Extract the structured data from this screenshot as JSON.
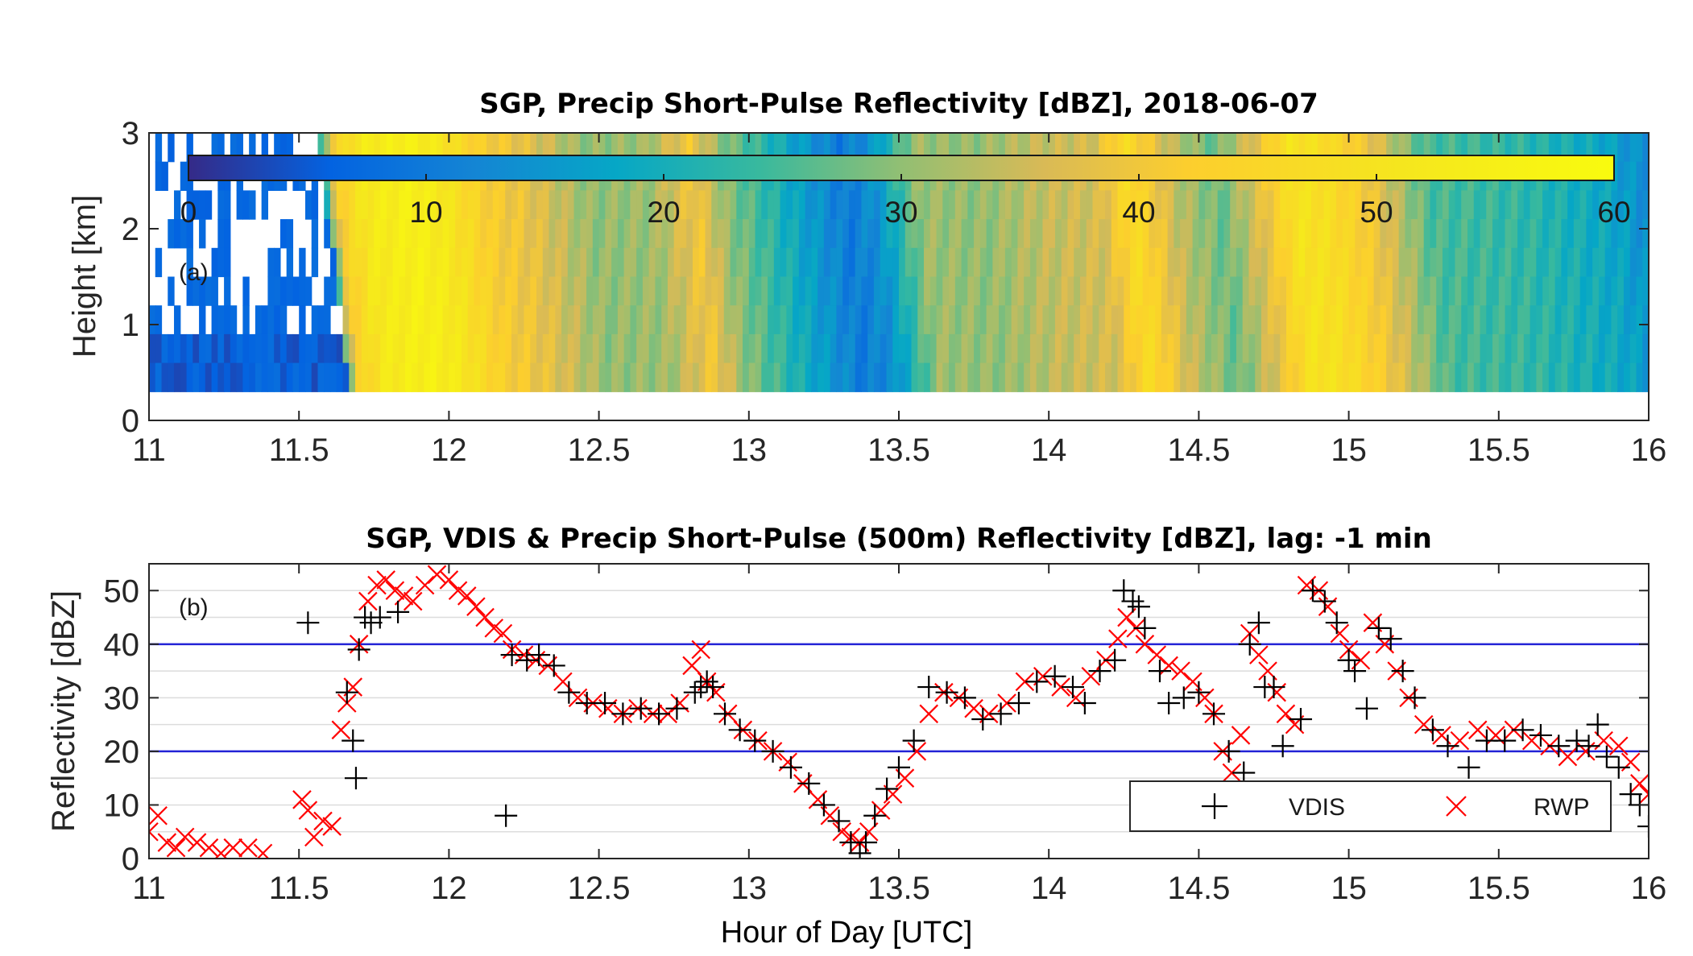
{
  "chart_data": [
    {
      "type": "heatmap",
      "panel_label": "(a)",
      "title": "SGP, Precip Short-Pulse Reflectivity [dBZ], 2018-06-07",
      "xlabel": "",
      "ylabel": "Height [km]",
      "xlim": [
        11,
        16
      ],
      "ylim": [
        0,
        3
      ],
      "xticks": [
        "11",
        "11.5",
        "12",
        "12.5",
        "13",
        "13.5",
        "14",
        "14.5",
        "15",
        "15.5",
        "16"
      ],
      "yticks": [
        "0",
        "1",
        "2",
        "3"
      ],
      "colorbar": {
        "range": [
          0,
          60
        ],
        "ticks": [
          "0",
          "10",
          "20",
          "30",
          "40",
          "50",
          "60"
        ],
        "colormap": "parula",
        "location": "inside-top"
      },
      "data_height_range_km": [
        0.3,
        3
      ],
      "hour_profile": {
        "hours": [
          11.0,
          11.3,
          11.6,
          11.66,
          11.75,
          11.9,
          12.0,
          12.15,
          12.3,
          12.5,
          12.7,
          12.85,
          12.95,
          13.2,
          13.35,
          13.45,
          13.6,
          13.8,
          14.0,
          14.2,
          14.3,
          14.45,
          14.6,
          14.75,
          14.85,
          14.95,
          15.1,
          15.3,
          15.6,
          15.9,
          16.0
        ],
        "reflectivity_dbz": [
          5,
          6,
          12,
          42,
          52,
          55,
          52,
          42,
          38,
          30,
          31,
          40,
          30,
          17,
          10,
          14,
          31,
          30,
          34,
          36,
          47,
          34,
          27,
          39,
          50,
          48,
          40,
          25,
          23,
          18,
          14
        ]
      }
    },
    {
      "type": "scatter",
      "panel_label": "(b)",
      "title": "SGP, VDIS & Precip Short-Pulse (500m) Reflectivity [dBZ], lag: -1 min",
      "xlabel": "Hour of Day [UTC]",
      "ylabel": "Reflectivity [dBZ]",
      "xlim": [
        11,
        16
      ],
      "ylim": [
        0,
        55
      ],
      "xticks": [
        "11",
        "11.5",
        "12",
        "12.5",
        "13",
        "13.5",
        "14",
        "14.5",
        "15",
        "15.5",
        "16"
      ],
      "yticks": [
        "0",
        "10",
        "20",
        "30",
        "40",
        "50"
      ],
      "reference_lines_y": [
        20,
        40
      ],
      "reference_line_color": "#2323d6",
      "grid": true,
      "legend_position": "bottom-right",
      "series": [
        {
          "name": "VDIS",
          "marker": "+",
          "color": "#000000",
          "x": [
            11.53,
            11.66,
            11.68,
            11.69,
            11.7,
            11.72,
            11.74,
            11.77,
            11.83,
            12.19,
            12.21,
            12.26,
            12.3,
            12.35,
            12.4,
            12.46,
            12.52,
            12.58,
            12.64,
            12.7,
            12.76,
            12.82,
            12.84,
            12.86,
            12.88,
            12.92,
            12.97,
            13.02,
            13.08,
            13.14,
            13.2,
            13.25,
            13.3,
            13.34,
            13.37,
            13.39,
            13.42,
            13.46,
            13.5,
            13.55,
            13.6,
            13.66,
            13.72,
            13.78,
            13.84,
            13.9,
            13.96,
            14.02,
            14.08,
            14.12,
            14.17,
            14.22,
            14.25,
            14.28,
            14.3,
            14.32,
            14.37,
            14.4,
            14.45,
            14.5,
            14.55,
            14.6,
            14.65,
            14.67,
            14.7,
            14.72,
            14.75,
            14.78,
            14.84,
            14.88,
            14.92,
            14.96,
            15.0,
            15.02,
            15.06,
            15.1,
            15.14,
            15.18,
            15.22,
            15.28,
            15.33,
            15.4,
            15.46,
            15.52,
            15.58,
            15.64,
            15.7,
            15.76,
            15.8,
            15.83,
            15.86,
            15.9,
            15.94,
            15.97,
            16.0
          ],
          "y": [
            44,
            31,
            22,
            15,
            39,
            45,
            44,
            45,
            46,
            8,
            38,
            37,
            38,
            36,
            31,
            29,
            29,
            27,
            28,
            27,
            28,
            31,
            32,
            33,
            32,
            27,
            24,
            22,
            20,
            17,
            14,
            10,
            7,
            3,
            1,
            3,
            8,
            13,
            17,
            22,
            32,
            31,
            30,
            26,
            27,
            29,
            33,
            34,
            32,
            29,
            35,
            37,
            50,
            48,
            47,
            43,
            35,
            29,
            30,
            31,
            27,
            20,
            16,
            40,
            44,
            32,
            32,
            21,
            26,
            50,
            48,
            44,
            37,
            35,
            28,
            43,
            41,
            35,
            30,
            24,
            21,
            17,
            22,
            22,
            24,
            23,
            21,
            22,
            21,
            25,
            19,
            17,
            12,
            10,
            6
          ]
        },
        {
          "name": "RWP",
          "marker": "x",
          "color": "#ff0000",
          "x": [
            11.0,
            11.03,
            11.06,
            11.09,
            11.12,
            11.16,
            11.2,
            11.24,
            11.28,
            11.33,
            11.38,
            11.51,
            11.53,
            11.55,
            11.58,
            11.61,
            11.64,
            11.66,
            11.68,
            11.7,
            11.73,
            11.76,
            11.79,
            11.82,
            11.85,
            11.88,
            11.92,
            11.96,
            12.0,
            12.03,
            12.06,
            12.09,
            12.12,
            12.15,
            12.18,
            12.21,
            12.25,
            12.29,
            12.33,
            12.38,
            12.43,
            12.48,
            12.53,
            12.58,
            12.63,
            12.68,
            12.73,
            12.77,
            12.81,
            12.84,
            12.86,
            12.89,
            12.93,
            12.98,
            13.03,
            13.08,
            13.13,
            13.18,
            13.23,
            13.27,
            13.31,
            13.34,
            13.37,
            13.4,
            13.44,
            13.48,
            13.52,
            13.56,
            13.6,
            13.65,
            13.7,
            13.75,
            13.8,
            13.86,
            13.92,
            13.98,
            14.04,
            14.09,
            14.14,
            14.19,
            14.23,
            14.26,
            14.29,
            14.32,
            14.36,
            14.4,
            14.44,
            14.48,
            14.52,
            14.55,
            14.58,
            14.61,
            14.64,
            14.67,
            14.7,
            14.73,
            14.76,
            14.79,
            14.82,
            14.86,
            14.9,
            14.93,
            14.97,
            15.0,
            15.04,
            15.08,
            15.12,
            15.16,
            15.2,
            15.25,
            15.31,
            15.37,
            15.43,
            15.49,
            15.55,
            15.61,
            15.67,
            15.73,
            15.79,
            15.85,
            15.9,
            15.94,
            15.97,
            16.0
          ],
          "y": [
            5,
            8,
            3,
            2,
            4,
            3,
            2,
            1,
            2,
            2,
            1,
            11,
            9,
            4,
            7,
            6,
            24,
            29,
            32,
            40,
            48,
            51,
            52,
            50,
            49,
            48,
            51,
            53,
            52,
            50,
            49,
            47,
            45,
            43,
            42,
            39,
            38,
            37,
            36,
            33,
            30,
            29,
            28,
            27,
            28,
            27,
            27,
            29,
            36,
            39,
            33,
            31,
            27,
            24,
            22,
            20,
            18,
            14,
            11,
            8,
            5,
            4,
            3,
            5,
            9,
            12,
            15,
            20,
            27,
            31,
            30,
            28,
            27,
            29,
            33,
            34,
            32,
            30,
            34,
            37,
            41,
            45,
            43,
            40,
            38,
            36,
            35,
            33,
            30,
            27,
            20,
            16,
            23,
            42,
            38,
            35,
            31,
            27,
            25,
            51,
            50,
            47,
            42,
            39,
            37,
            44,
            40,
            35,
            30,
            25,
            23,
            22,
            24,
            23,
            24,
            22,
            21,
            19,
            20,
            22,
            21,
            18,
            14,
            12
          ]
        }
      ]
    }
  ]
}
